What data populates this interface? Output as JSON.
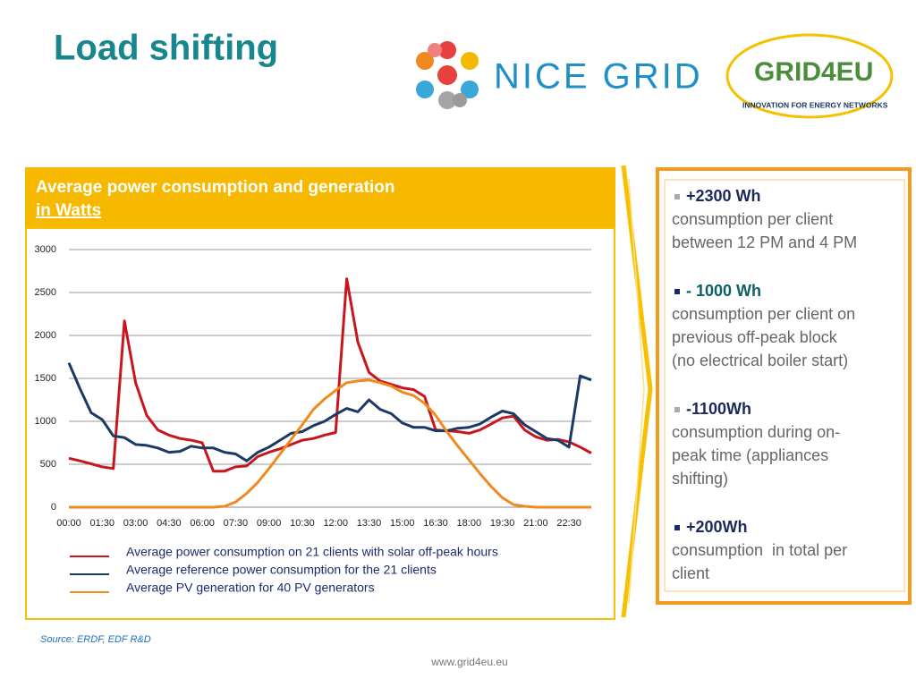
{
  "title": "Load shifting",
  "logos": {
    "nice_grid": "NICE GRID",
    "grid4eu": "GRID4EU",
    "grid4eu_tagline": "INNOVATION FOR ENERGY NETWORKS"
  },
  "chart_data": {
    "type": "line",
    "title": "Average power consumption and generation",
    "subtitle": "in Watts",
    "categories": [
      "00:00",
      null,
      null,
      "01:30",
      null,
      null,
      "03:00",
      null,
      null,
      "04:30",
      null,
      null,
      "06:00",
      null,
      null,
      "07:30",
      null,
      null,
      "09:00",
      null,
      null,
      "10:30",
      null,
      null,
      "12:00",
      null,
      null,
      "13:30",
      null,
      null,
      "15:00",
      null,
      null,
      "16:30",
      null,
      null,
      "18:00",
      null,
      null,
      "19:30",
      null,
      null,
      "21:00",
      null,
      null,
      "22:30",
      null,
      null
    ],
    "series": [
      {
        "name": "Average power consumption on 21 clients with solar off-peak hours",
        "color": "#c8161d",
        "values": [
          570,
          540,
          505,
          470,
          450,
          2170,
          1450,
          1070,
          900,
          840,
          800,
          780,
          750,
          420,
          420,
          470,
          480,
          590,
          640,
          680,
          730,
          780,
          800,
          840,
          870,
          2660,
          1920,
          1570,
          1470,
          1430,
          1390,
          1370,
          1290,
          900,
          890,
          880,
          860,
          900,
          970,
          1040,
          1060,
          900,
          820,
          780,
          790,
          760,
          700,
          630
        ]
      },
      {
        "name": "Average reference power consumption for the 21 clients",
        "color": "#1b3a63",
        "values": [
          1680,
          1380,
          1100,
          1020,
          830,
          810,
          730,
          720,
          690,
          640,
          650,
          710,
          690,
          690,
          640,
          620,
          540,
          640,
          700,
          780,
          860,
          880,
          950,
          1000,
          1080,
          1150,
          1110,
          1250,
          1140,
          1090,
          980,
          930,
          930,
          890,
          890,
          920,
          930,
          970,
          1050,
          1120,
          1090,
          960,
          880,
          800,
          780,
          700,
          1530,
          1480
        ]
      },
      {
        "name": "Average PV generation for 40 PV generators",
        "color": "#ef8a1e",
        "values": [
          0,
          0,
          0,
          0,
          0,
          0,
          0,
          0,
          0,
          0,
          0,
          0,
          0,
          0,
          10,
          60,
          160,
          290,
          450,
          620,
          790,
          960,
          1140,
          1260,
          1360,
          1450,
          1470,
          1480,
          1450,
          1410,
          1340,
          1300,
          1210,
          1070,
          880,
          710,
          550,
          390,
          240,
          110,
          30,
          10,
          0,
          0,
          0,
          0,
          0,
          0
        ]
      }
    ],
    "ylim": [
      0,
      3000
    ],
    "yticks": [
      0,
      500,
      1000,
      1500,
      2000,
      2500,
      3000
    ],
    "grid": true
  },
  "bullets": [
    {
      "heading": "+2300 Wh",
      "lines": [
        "consumption per client",
        "between 12 PM and 4 PM"
      ]
    },
    {
      "heading": "- 1000 Wh",
      "lines": [
        "consumption per client on",
        "previous off-peak block",
        "(no electrical boiler start)"
      ]
    },
    {
      "heading": "-1100Wh",
      "lines": [
        "consumption during on-",
        "peak time (appliances",
        "shifting)"
      ]
    },
    {
      "heading": "+200Wh",
      "lines": [
        "consumption  in total per",
        "client"
      ]
    }
  ],
  "source": "Source: ERDF, EDF R&D",
  "footer": "www.grid4eu.eu"
}
